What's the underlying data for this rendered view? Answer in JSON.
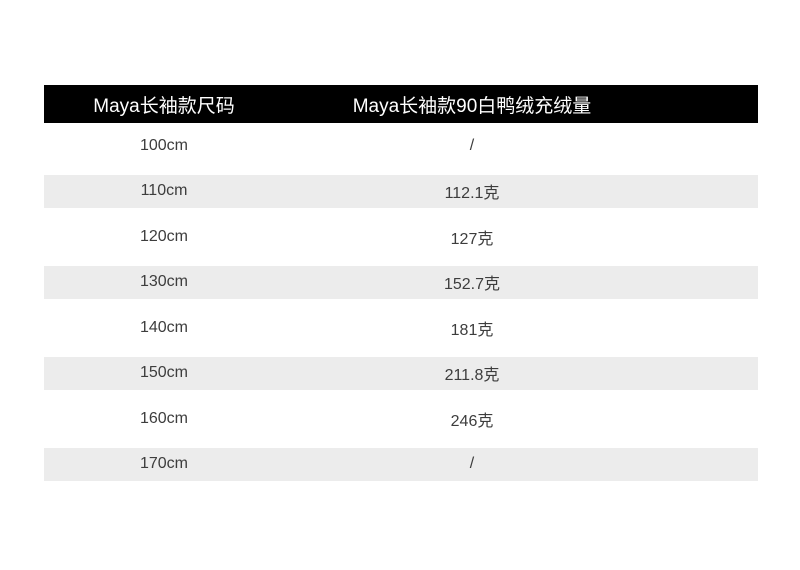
{
  "table": {
    "header": {
      "size_column": "Maya长袖款尺码",
      "fill_column": "Maya长袖款90白鸭绒充绒量"
    },
    "rows": [
      {
        "size": "100cm",
        "fill": "/"
      },
      {
        "size": "110cm",
        "fill": "112.1克"
      },
      {
        "size": "120cm",
        "fill": "127克"
      },
      {
        "size": "130cm",
        "fill": "152.7克"
      },
      {
        "size": "140cm",
        "fill": "181克"
      },
      {
        "size": "150cm",
        "fill": "211.8克"
      },
      {
        "size": "160cm",
        "fill": "246克"
      },
      {
        "size": "170cm",
        "fill": "/"
      }
    ],
    "colors": {
      "header_bg": "#000000",
      "header_text": "#ffffff",
      "alt_row_bg": "#ececec",
      "body_text": "#3d3d3d",
      "page_bg": "#ffffff"
    }
  }
}
